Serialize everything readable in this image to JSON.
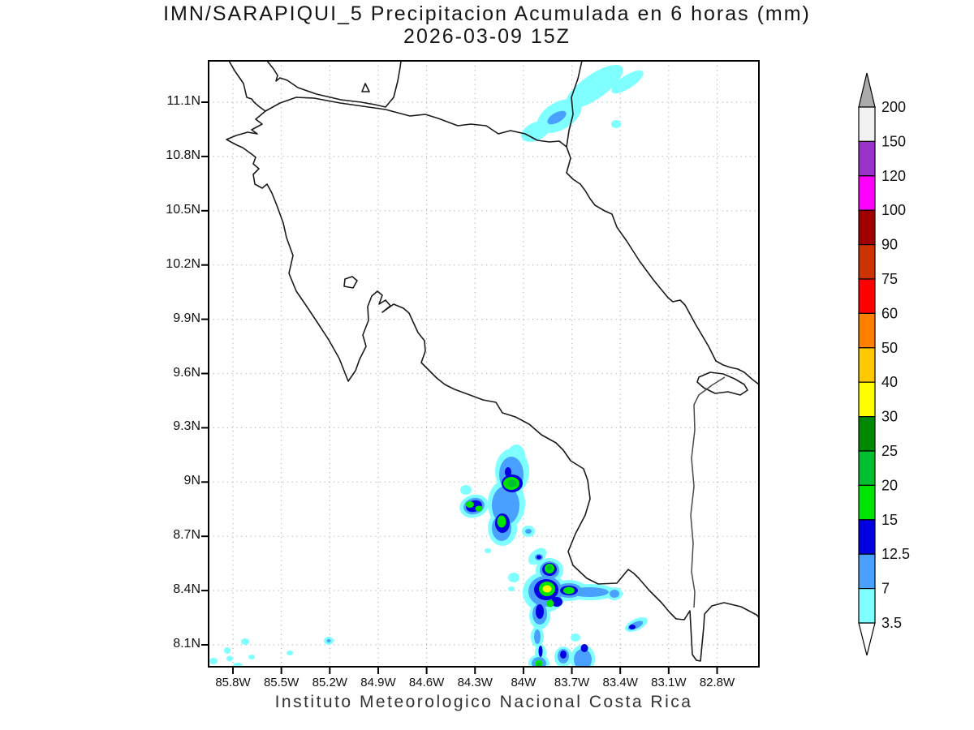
{
  "title": {
    "line1": "IMN/SARAPIQUI_5 Precipitacion Acumulada en 6 horas (mm)",
    "line2": "2026-03-09 15Z"
  },
  "caption": "Instituto Meteorologico Nacional Costa Rica",
  "map": {
    "region": "Costa Rica",
    "y_axis": {
      "ticks": [
        "11.1N",
        "10.8N",
        "10.5N",
        "10.2N",
        "9.9N",
        "9.6N",
        "9.3N",
        "9N",
        "8.7N",
        "8.4N",
        "8.1N"
      ]
    },
    "x_axis": {
      "ticks": [
        "85.8W",
        "85.5W",
        "85.2W",
        "84.9W",
        "84.6W",
        "84.3W",
        "84W",
        "83.7W",
        "83.4W",
        "83.1W",
        "82.8W"
      ]
    }
  },
  "colorbar": {
    "unit": "mm",
    "levels_bottom_to_top": [
      "3.5",
      "7",
      "12.5",
      "15",
      "20",
      "25",
      "30",
      "40",
      "50",
      "60",
      "75",
      "90",
      "100",
      "120",
      "150",
      "200"
    ],
    "colors_bottom_to_top": [
      "#7fffff",
      "#4aa0ff",
      "#0000e0",
      "#00e400",
      "#00c030",
      "#008800",
      "#ffff00",
      "#ffc800",
      "#ff8000",
      "#ff0000",
      "#cc3300",
      "#a00000",
      "#ff00ff",
      "#9933cc",
      "#f2f2f2"
    ],
    "arrow_top_color": "#ababab",
    "arrow_bottom_color": "#ffffff"
  },
  "chart_data": {
    "type": "map",
    "title": "IMN/SARAPIQUI_5 Precipitacion Acumulada en 6 horas (mm) 2026-03-09 15Z",
    "lat_range": [
      "8.1N",
      "11.1N"
    ],
    "lon_range": [
      "85.8W",
      "82.8W"
    ],
    "grid_interval_deg": 0.3,
    "grid": "dotted gray graticule every 0.3 degrees",
    "scale_levels_mm": [
      3.5,
      7,
      12.5,
      15,
      20,
      25,
      30,
      40,
      50,
      60,
      75,
      90,
      100,
      120,
      150,
      200
    ],
    "features": [
      {
        "location": "near 83.95W 11.15N, Caribbean coast north",
        "peak_mm": "7-12.5"
      },
      {
        "location": "near 84.15W 9.0N, central Pacific slope",
        "peak_mm": "20-25"
      },
      {
        "location": "near 84.3W 8.85N",
        "peak_mm": "15-20"
      },
      {
        "location": "near 83.85W 8.4N, southern zone",
        "peak_mm": "30-40"
      },
      {
        "location": "near 83.9W 8.05N, bottom edge",
        "peak_mm": "20-25"
      },
      {
        "location": "scattered small cells 8.0-8.2N between 85.9W and 83.5W",
        "peak_mm": "3.5-12.5"
      }
    ]
  }
}
